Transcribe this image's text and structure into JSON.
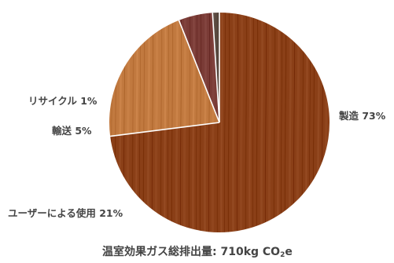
{
  "chart_data": {
    "type": "pie",
    "title": "",
    "caption": {
      "prefix": "温室効果ガス総排出量: 710kg CO",
      "subscript": "2",
      "suffix": "e"
    },
    "slices": [
      {
        "label": "製造 73%",
        "name": "製造",
        "value": 73,
        "color": "#8a3f17"
      },
      {
        "label": "ユーザーによる使用 21%",
        "name": "ユーザーによる使用",
        "value": 21,
        "color": "#c1793f"
      },
      {
        "label": "輸送 5%",
        "name": "輸送",
        "value": 5,
        "color": "#7a3b36"
      },
      {
        "label": "リサイクル 1%",
        "name": "リサイクル",
        "value": 1,
        "color": "#5a4a40"
      }
    ],
    "start_angle_deg": 0,
    "direction": "clockwise",
    "texture": "wood-grain",
    "legend": "none"
  }
}
